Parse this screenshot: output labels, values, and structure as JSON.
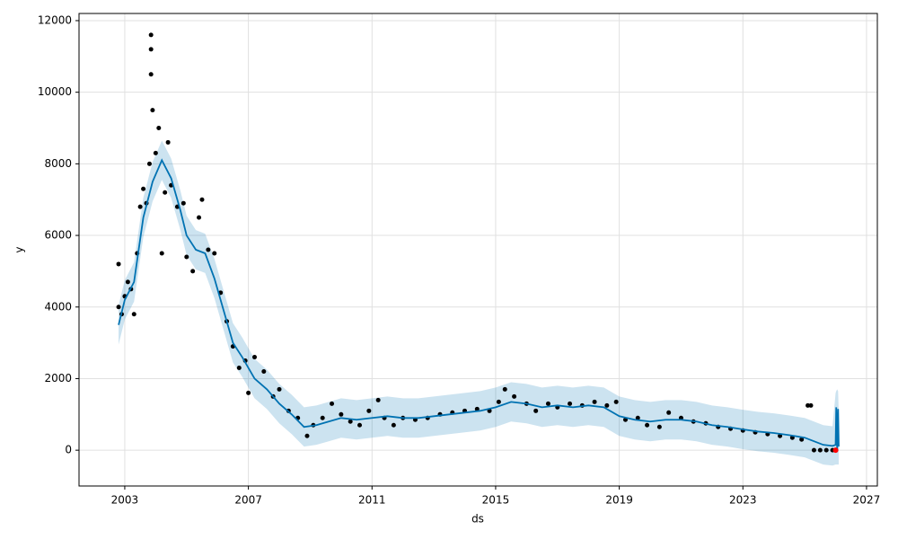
{
  "chart_data": {
    "type": "line",
    "xlabel": "ds",
    "ylabel": "y",
    "xlim": [
      2001.52,
      2027.35
    ],
    "ylim": [
      -1000,
      12200
    ],
    "xticks": [
      2003,
      2007,
      2011,
      2015,
      2019,
      2023,
      2027
    ],
    "yticks": [
      0,
      2000,
      4000,
      6000,
      8000,
      10000,
      12000
    ],
    "grid": true,
    "x": [
      2002.8,
      2003.0,
      2003.3,
      2003.6,
      2003.9,
      2004.2,
      2004.5,
      2004.8,
      2005.0,
      2005.3,
      2005.6,
      2005.9,
      2006.2,
      2006.5,
      2006.8,
      2007.2,
      2007.6,
      2008.0,
      2008.4,
      2008.8,
      2009.2,
      2009.6,
      2010.0,
      2010.5,
      2011.0,
      2011.5,
      2012.0,
      2012.5,
      2013.0,
      2013.5,
      2014.0,
      2014.5,
      2015.0,
      2015.5,
      2016.0,
      2016.5,
      2017.0,
      2017.5,
      2018.0,
      2018.5,
      2019.0,
      2019.5,
      2020.0,
      2020.5,
      2021.0,
      2021.5,
      2022.0,
      2022.5,
      2023.0,
      2023.5,
      2024.0,
      2024.5,
      2025.0,
      2025.3,
      2025.6,
      2025.9,
      2026.0,
      2026.02,
      2026.05,
      2026.08,
      2026.1
    ],
    "line": {
      "color": "#0072B2",
      "values": [
        3500,
        4200,
        4700,
        6500,
        7500,
        8100,
        7600,
        6700,
        6000,
        5600,
        5500,
        4800,
        3900,
        3000,
        2600,
        2000,
        1700,
        1300,
        1000,
        650,
        700,
        800,
        900,
        850,
        900,
        950,
        900,
        900,
        950,
        1000,
        1050,
        1100,
        1200,
        1350,
        1300,
        1200,
        1250,
        1200,
        1250,
        1200,
        950,
        850,
        800,
        850,
        850,
        800,
        700,
        650,
        580,
        520,
        480,
        420,
        350,
        250,
        150,
        120,
        150,
        1200,
        0,
        1150,
        100
      ]
    },
    "band": {
      "color": "#0072B2",
      "lower": [
        2950,
        3650,
        4150,
        5950,
        6950,
        7550,
        7050,
        6150,
        5450,
        5050,
        4950,
        4250,
        3350,
        2450,
        2050,
        1450,
        1150,
        750,
        450,
        100,
        150,
        250,
        350,
        300,
        350,
        400,
        350,
        350,
        400,
        450,
        500,
        550,
        650,
        800,
        750,
        650,
        700,
        650,
        700,
        650,
        400,
        300,
        250,
        300,
        300,
        250,
        150,
        100,
        30,
        -30,
        -70,
        -130,
        -200,
        -300,
        -400,
        -430,
        -400,
        -400,
        -400,
        -400,
        -400
      ],
      "upper": [
        4050,
        4750,
        5250,
        7050,
        8050,
        8650,
        8150,
        7250,
        6550,
        6150,
        6050,
        5350,
        4450,
        3550,
        3150,
        2550,
        2250,
        1850,
        1550,
        1200,
        1250,
        1350,
        1450,
        1400,
        1450,
        1500,
        1450,
        1450,
        1500,
        1550,
        1600,
        1650,
        1750,
        1900,
        1850,
        1750,
        1800,
        1750,
        1800,
        1750,
        1500,
        1400,
        1350,
        1400,
        1400,
        1350,
        1250,
        1200,
        1130,
        1070,
        1030,
        970,
        900,
        800,
        700,
        670,
        1600,
        1650,
        1700,
        1650,
        1100
      ]
    },
    "points": {
      "color": "#000000",
      "x": [
        2002.8,
        2002.8,
        2002.9,
        2003.0,
        2003.1,
        2003.2,
        2003.3,
        2003.4,
        2003.5,
        2003.6,
        2003.7,
        2003.8,
        2003.85,
        2003.85,
        2003.85,
        2003.9,
        2004.0,
        2004.1,
        2004.2,
        2004.3,
        2004.4,
        2004.5,
        2004.7,
        2004.9,
        2005.0,
        2005.2,
        2005.4,
        2005.5,
        2005.7,
        2005.9,
        2006.1,
        2006.3,
        2006.5,
        2006.7,
        2006.9,
        2007.0,
        2007.2,
        2007.5,
        2007.8,
        2008.0,
        2008.3,
        2008.6,
        2008.9,
        2009.1,
        2009.4,
        2009.7,
        2010.0,
        2010.3,
        2010.6,
        2010.9,
        2011.2,
        2011.4,
        2011.7,
        2012.0,
        2012.4,
        2012.8,
        2013.2,
        2013.6,
        2014.0,
        2014.4,
        2014.8,
        2015.1,
        2015.3,
        2015.6,
        2016.0,
        2016.3,
        2016.7,
        2017.0,
        2017.4,
        2017.8,
        2018.2,
        2018.6,
        2018.9,
        2019.2,
        2019.6,
        2019.9,
        2020.3,
        2020.6,
        2021.0,
        2021.4,
        2021.8,
        2022.2,
        2022.6,
        2023.0,
        2023.4,
        2023.8,
        2024.2,
        2024.6,
        2024.9,
        2025.1,
        2025.2,
        2025.3,
        2025.5,
        2025.7,
        2025.9
      ],
      "y": [
        4000,
        5200,
        3800,
        4300,
        4700,
        4500,
        3800,
        5500,
        6800,
        7300,
        6900,
        8000,
        11600,
        11200,
        10500,
        9500,
        8300,
        9000,
        5500,
        7200,
        8600,
        7400,
        6800,
        6900,
        5400,
        5000,
        6500,
        7000,
        5600,
        5500,
        4400,
        3600,
        2900,
        2300,
        2500,
        1600,
        2600,
        2200,
        1500,
        1700,
        1100,
        900,
        400,
        700,
        900,
        1300,
        1000,
        800,
        700,
        1100,
        1400,
        900,
        700,
        900,
        850,
        900,
        1000,
        1050,
        1100,
        1150,
        1100,
        1350,
        1700,
        1500,
        1300,
        1100,
        1300,
        1200,
        1300,
        1250,
        1350,
        1250,
        1350,
        850,
        900,
        700,
        650,
        1050,
        900,
        800,
        750,
        650,
        600,
        550,
        500,
        450,
        400,
        350,
        300,
        1250,
        1250,
        0,
        0,
        0,
        0
      ]
    },
    "highlight": {
      "color": "#ff0000",
      "x": [
        2026.0
      ],
      "y": [
        0
      ]
    }
  }
}
